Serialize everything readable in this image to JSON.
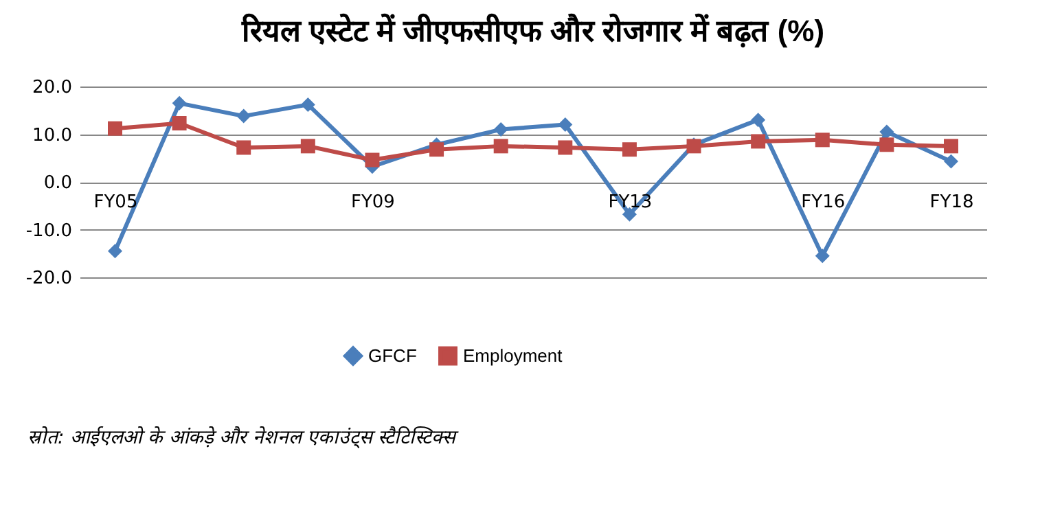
{
  "chart_data": {
    "type": "line",
    "title": "रियल एस्टेट में जीएफसीएफ और रोजगार में बढ़त (%)",
    "categories": [
      "FY05",
      null,
      null,
      null,
      "FY09",
      null,
      null,
      null,
      "FY13",
      null,
      null,
      "FY16",
      null,
      "FY18"
    ],
    "series": [
      {
        "name": "GFCF",
        "color": "#4a7ebb",
        "marker": "diamond",
        "values": [
          -14.5,
          16.5,
          13.8,
          16.2,
          3.2,
          7.8,
          11,
          12,
          -6.8,
          7.8,
          13,
          -15.5,
          10.5,
          4.3
        ]
      },
      {
        "name": "Employment",
        "color": "#be4b48",
        "marker": "square",
        "values": [
          11.2,
          12.3,
          7.2,
          7.5,
          4.6,
          6.8,
          7.5,
          7.2,
          6.8,
          7.5,
          8.5,
          8.8,
          7.8,
          7.5
        ]
      }
    ],
    "ylim": [
      -20,
      20
    ],
    "yticks": [
      {
        "value": -20,
        "label": "-20.0"
      },
      {
        "value": -10,
        "label": "-10.0"
      },
      {
        "value": 0,
        "label": "0.0"
      },
      {
        "value": 10,
        "label": "10.0"
      },
      {
        "value": 20,
        "label": "20.0"
      }
    ],
    "grid": "y",
    "legend": "bottom",
    "annotations": [
      "स्रोत: आईएलओ के आंकड़े और नेशनल एकाउंट्स स्टैटिस्टिक्स"
    ]
  }
}
